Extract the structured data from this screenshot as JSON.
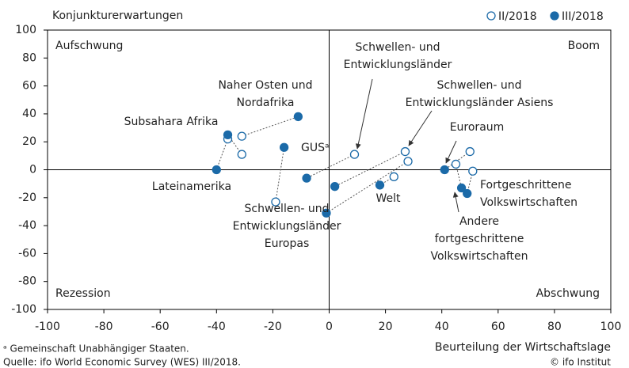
{
  "chart_data": {
    "type": "scatter",
    "y_label": "Konjunkturerwartungen",
    "x_label": "Beurteilung der Wirtschaftslage",
    "xlim": [
      -100,
      100
    ],
    "xticks": [
      -100,
      -80,
      -60,
      -40,
      -20,
      0,
      20,
      40,
      60,
      80,
      100
    ],
    "ylim": [
      -100,
      100
    ],
    "yticks": [
      -100,
      -80,
      -60,
      -40,
      -20,
      0,
      20,
      40,
      60,
      80,
      100
    ],
    "legend": "upper right",
    "series": [
      {
        "name": "II/2018",
        "color": "#1b6aa8",
        "marker": "open",
        "x": [
          -31,
          -31,
          -19,
          -36,
          9,
          27,
          28,
          23,
          50,
          51,
          45
        ],
        "values": [
          11,
          24,
          -23,
          22,
          11,
          13,
          6,
          -5,
          13,
          -1,
          4
        ]
      },
      {
        "name": "III/2018",
        "color": "#1b6aa8",
        "marker": "filled",
        "x": [
          -36,
          -11,
          -16,
          -40,
          -8,
          2,
          -1,
          18,
          41,
          49,
          47
        ],
        "values": [
          25,
          38,
          16,
          0,
          -6,
          -12,
          -31,
          -11,
          0,
          -17,
          -13
        ]
      }
    ],
    "annotations": [
      [
        "Subsahara Afrika"
      ],
      [
        "Naher Osten und",
        "Nordafrika"
      ],
      [
        "GUSᵃ"
      ],
      [
        "Lateinamerika"
      ],
      [
        "Schwellen- und",
        "Entwicklungsländer"
      ],
      [
        "Schwellen- und",
        "Entwicklungsländer Asiens"
      ],
      [
        "Schwellen- und",
        "Entwicklungsländer",
        "Europas"
      ],
      [
        "Welt"
      ],
      [
        "Euroraum"
      ],
      [
        "Fortgeschrittene",
        "Volkswirtschaften"
      ],
      [
        "Andere",
        "fortgeschrittene",
        "Volkswirtschaften"
      ]
    ],
    "quadrants": [
      "Aufschwung",
      "Boom",
      "Rezession",
      "Abschwung"
    ],
    "footnote": "ᵃ Gemeinschaft Unabhängiger Staaten.",
    "source": "Quelle: ifo World Economic Survey (WES) III/2018.",
    "copyright": "© ifo Institut"
  }
}
